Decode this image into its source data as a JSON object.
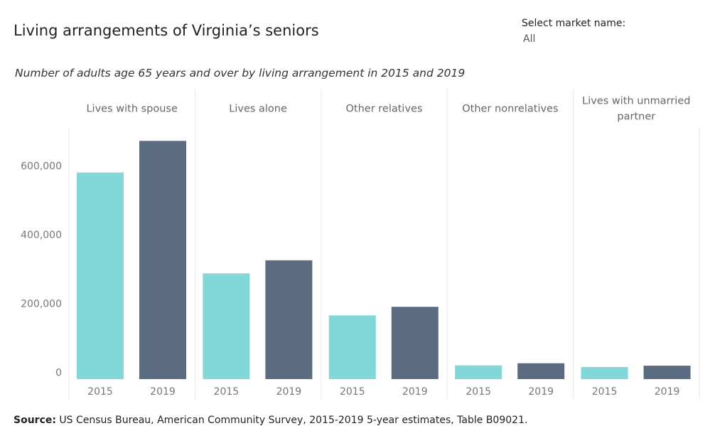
{
  "header": {
    "title": "Living arrangements of Virginia’s seniors",
    "subtitle": "Number of adults age 65 years and over by living arrangement in 2015 and 2019"
  },
  "filter": {
    "label": "Select market name:",
    "value": "All"
  },
  "footer": {
    "source_label": "Source:",
    "source_text": "US Census Bureau, American Community Survey, 2015-2019 5-year estimates, Table B09021."
  },
  "colors": {
    "2015": "#82d8d8",
    "2019": "#5b6b80",
    "grid": "#e6e6e6",
    "axis_text": "#777777"
  },
  "chart_data": {
    "type": "bar",
    "panels": [
      {
        "label": [
          "Lives with spouse"
        ],
        "values": {
          "2015": 580000,
          "2019": 672000
        }
      },
      {
        "label": [
          "Lives alone"
        ],
        "values": {
          "2015": 287000,
          "2019": 325000
        }
      },
      {
        "label": [
          "Other relatives"
        ],
        "values": {
          "2015": 165000,
          "2019": 190000
        }
      },
      {
        "label": [
          "Other nonrelatives"
        ],
        "values": {
          "2015": 20000,
          "2019": 26000
        }
      },
      {
        "label": [
          "Lives with unmarried",
          "partner"
        ],
        "values": {
          "2015": 15000,
          "2019": 19000
        }
      }
    ],
    "years": [
      "2015",
      "2019"
    ],
    "y_ticks": [
      {
        "value": 0,
        "label": "0"
      },
      {
        "value": 200000,
        "label": "200,000"
      },
      {
        "value": 400000,
        "label": "400,000"
      },
      {
        "value": 600000,
        "label": "600,000"
      }
    ],
    "ylim": [
      -20000,
      710000
    ]
  }
}
